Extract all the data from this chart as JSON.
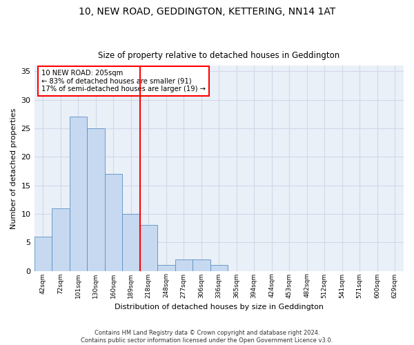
{
  "title": "10, NEW ROAD, GEDDINGTON, KETTERING, NN14 1AT",
  "subtitle": "Size of property relative to detached houses in Geddington",
  "xlabel": "Distribution of detached houses by size in Geddington",
  "ylabel": "Number of detached properties",
  "categories": [
    "42sqm",
    "72sqm",
    "101sqm",
    "130sqm",
    "160sqm",
    "189sqm",
    "218sqm",
    "248sqm",
    "277sqm",
    "306sqm",
    "336sqm",
    "365sqm",
    "394sqm",
    "424sqm",
    "453sqm",
    "482sqm",
    "512sqm",
    "541sqm",
    "571sqm",
    "600sqm",
    "629sqm"
  ],
  "values": [
    6,
    11,
    27,
    25,
    17,
    10,
    8,
    1,
    2,
    2,
    1,
    0,
    0,
    0,
    0,
    0,
    0,
    0,
    0,
    0,
    0
  ],
  "bar_color": "#c6d9f0",
  "bar_edge_color": "#5b8ec4",
  "vline_color": "red",
  "vline_lw": 1.5,
  "vline_x": 5.5,
  "annotation_line1": "10 NEW ROAD: 205sqm",
  "annotation_line2": "← 83% of detached houses are smaller (91)",
  "annotation_line3": "17% of semi-detached houses are larger (19) →",
  "ylim": [
    0,
    36
  ],
  "yticks": [
    0,
    5,
    10,
    15,
    20,
    25,
    30,
    35
  ],
  "grid_color": "#d0d8e8",
  "bg_color": "#eaf0f8",
  "footer": "Contains HM Land Registry data © Crown copyright and database right 2024.\nContains public sector information licensed under the Open Government Licence v3.0."
}
